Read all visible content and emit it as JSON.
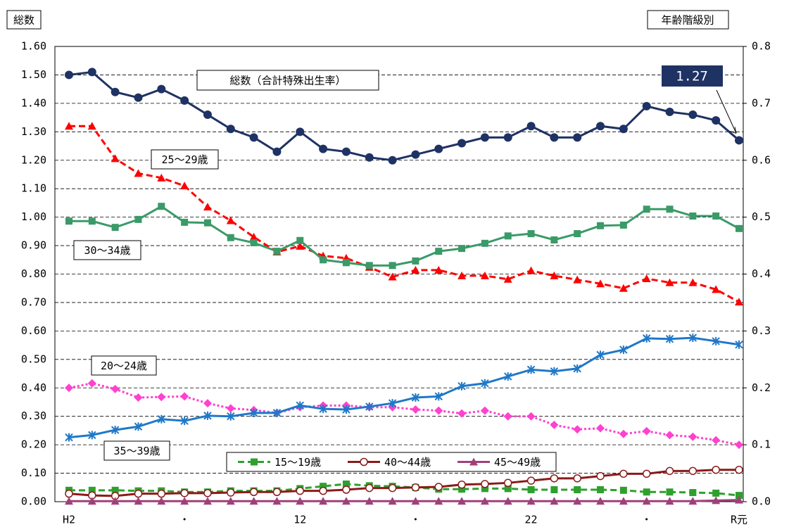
{
  "chart_data": {
    "type": "line",
    "y_axis_title": "総数",
    "y2_axis_title": "年齢階級別",
    "grid": true,
    "categories": [
      "H2",
      null,
      null,
      null,
      null,
      "・",
      null,
      null,
      null,
      null,
      "12",
      null,
      null,
      null,
      null,
      "・",
      null,
      null,
      null,
      null,
      "22",
      null,
      null,
      null,
      null,
      "・",
      null,
      null,
      null,
      "R元"
    ],
    "ylim": [
      0,
      1.6
    ],
    "yticks": [
      {
        "value": 0,
        "label": "0.00"
      },
      {
        "value": 0.1,
        "label": "0.10"
      },
      {
        "value": 0.2,
        "label": "0.20"
      },
      {
        "value": 0.3,
        "label": "0.30"
      },
      {
        "value": 0.4,
        "label": "0.40"
      },
      {
        "value": 0.5,
        "label": "0.50"
      },
      {
        "value": 0.6,
        "label": "0.60"
      },
      {
        "value": 0.7,
        "label": "0.70"
      },
      {
        "value": 0.8,
        "label": "0.80"
      },
      {
        "value": 0.9,
        "label": "0.90"
      },
      {
        "value": 1,
        "label": "1.00"
      },
      {
        "value": 1.1,
        "label": "1.10"
      },
      {
        "value": 1.2,
        "label": "1.20"
      },
      {
        "value": 1.3,
        "label": "1.30"
      },
      {
        "value": 1.4,
        "label": "1.40"
      },
      {
        "value": 1.5,
        "label": "1.50"
      },
      {
        "value": 1.6,
        "label": "1.60"
      }
    ],
    "y2lim": [
      0,
      0.8
    ],
    "y2ticks": [
      {
        "value": 0,
        "label": "0.0"
      },
      0.1,
      0.2,
      0.3,
      0.4,
      0.5,
      0.6,
      0.7,
      0.8
    ],
    "series": [
      {
        "name": "総数（合計特殊出生率）",
        "color": "#1f3264",
        "marker": "circle",
        "dash": "solid",
        "legend": false,
        "values": [
          1.5,
          1.51,
          1.44,
          1.42,
          1.45,
          1.41,
          1.36,
          1.31,
          1.28,
          1.23,
          1.3,
          1.24,
          1.23,
          1.21,
          1.2,
          1.22,
          1.24,
          1.26,
          1.28,
          1.28,
          1.32,
          1.28,
          1.28,
          1.32,
          1.31,
          1.39,
          1.37,
          1.36,
          1.34,
          1.27
        ]
      },
      {
        "name": "25～29歳",
        "axis": "y2",
        "color": "#ff0000",
        "marker": "triangle",
        "dash": "dashed",
        "legend": false,
        "values": [
          0.66,
          0.66,
          0.603,
          0.577,
          0.569,
          0.555,
          0.518,
          0.494,
          0.465,
          0.439,
          0.449,
          0.432,
          0.428,
          0.412,
          0.395,
          0.407,
          0.407,
          0.397,
          0.397,
          0.391,
          0.406,
          0.397,
          0.39,
          0.383,
          0.375,
          0.392,
          0.385,
          0.385,
          0.373,
          0.351
        ]
      },
      {
        "name": "30～34歳",
        "axis": "y2",
        "color": "#3a9a68",
        "marker": "square",
        "dash": "solid",
        "legend": false,
        "values": [
          0.493,
          0.493,
          0.482,
          0.496,
          0.519,
          0.491,
          0.49,
          0.464,
          0.455,
          0.44,
          0.459,
          0.425,
          0.42,
          0.415,
          0.415,
          0.423,
          0.44,
          0.445,
          0.454,
          0.467,
          0.471,
          0.46,
          0.471,
          0.485,
          0.486,
          0.514,
          0.514,
          0.502,
          0.502,
          0.48
        ]
      },
      {
        "name": "20～24歳",
        "axis": "y2",
        "color": "#ff40d0",
        "marker": "diamond",
        "dash": "dotted",
        "legend": false,
        "values": [
          0.2,
          0.208,
          0.198,
          0.183,
          0.184,
          0.185,
          0.173,
          0.164,
          0.161,
          0.156,
          0.166,
          0.169,
          0.169,
          0.166,
          0.166,
          0.162,
          0.16,
          0.155,
          0.16,
          0.15,
          0.15,
          0.135,
          0.127,
          0.129,
          0.119,
          0.124,
          0.117,
          0.114,
          0.108,
          0.1
        ]
      },
      {
        "name": "35～39歳",
        "axis": "y2",
        "color": "#1f78c8",
        "marker": "star",
        "dash": "solid",
        "legend": false,
        "values": [
          0.113,
          0.117,
          0.126,
          0.132,
          0.145,
          0.142,
          0.151,
          0.15,
          0.156,
          0.156,
          0.169,
          0.163,
          0.162,
          0.167,
          0.173,
          0.183,
          0.185,
          0.203,
          0.208,
          0.22,
          0.232,
          0.229,
          0.234,
          0.258,
          0.267,
          0.287,
          0.286,
          0.288,
          0.282,
          0.276
        ]
      },
      {
        "name": "15～19歳",
        "axis": "y2",
        "color": "#2ea02e",
        "marker": "square",
        "dash": "dashed",
        "legend": true,
        "values": [
          0.02,
          0.02,
          0.02,
          0.019,
          0.019,
          0.017,
          0.017,
          0.019,
          0.019,
          0.019,
          0.023,
          0.027,
          0.031,
          0.028,
          0.027,
          0.025,
          0.022,
          0.022,
          0.023,
          0.023,
          0.021,
          0.021,
          0.021,
          0.021,
          0.02,
          0.017,
          0.017,
          0.016,
          0.015,
          0.011
        ]
      },
      {
        "name": "40～44歳",
        "axis": "y2",
        "color": "#8b1a1a",
        "marker": "open-circle",
        "dash": "solid",
        "legend": true,
        "values": [
          0.014,
          0.011,
          0.01,
          0.014,
          0.014,
          0.015,
          0.015,
          0.016,
          0.017,
          0.017,
          0.019,
          0.019,
          0.021,
          0.024,
          0.024,
          0.025,
          0.026,
          0.03,
          0.031,
          0.033,
          0.037,
          0.041,
          0.041,
          0.045,
          0.049,
          0.049,
          0.054,
          0.054,
          0.056,
          0.056
        ]
      },
      {
        "name": "45～49歳",
        "axis": "y2",
        "color": "#a0407a",
        "marker": "triangle",
        "dash": "solid",
        "legend": true,
        "values": [
          0.001,
          0.001,
          0.001,
          0.001,
          0.001,
          0.001,
          0.001,
          0.001,
          0.001,
          0.001,
          0.001,
          0.001,
          0.001,
          0.001,
          0.001,
          0.001,
          0.001,
          0.001,
          0.001,
          0.001,
          0.001,
          0.001,
          0.001,
          0.001,
          0.001,
          0.001,
          0.001,
          0.001,
          0.002,
          0.003
        ]
      }
    ]
  }
}
